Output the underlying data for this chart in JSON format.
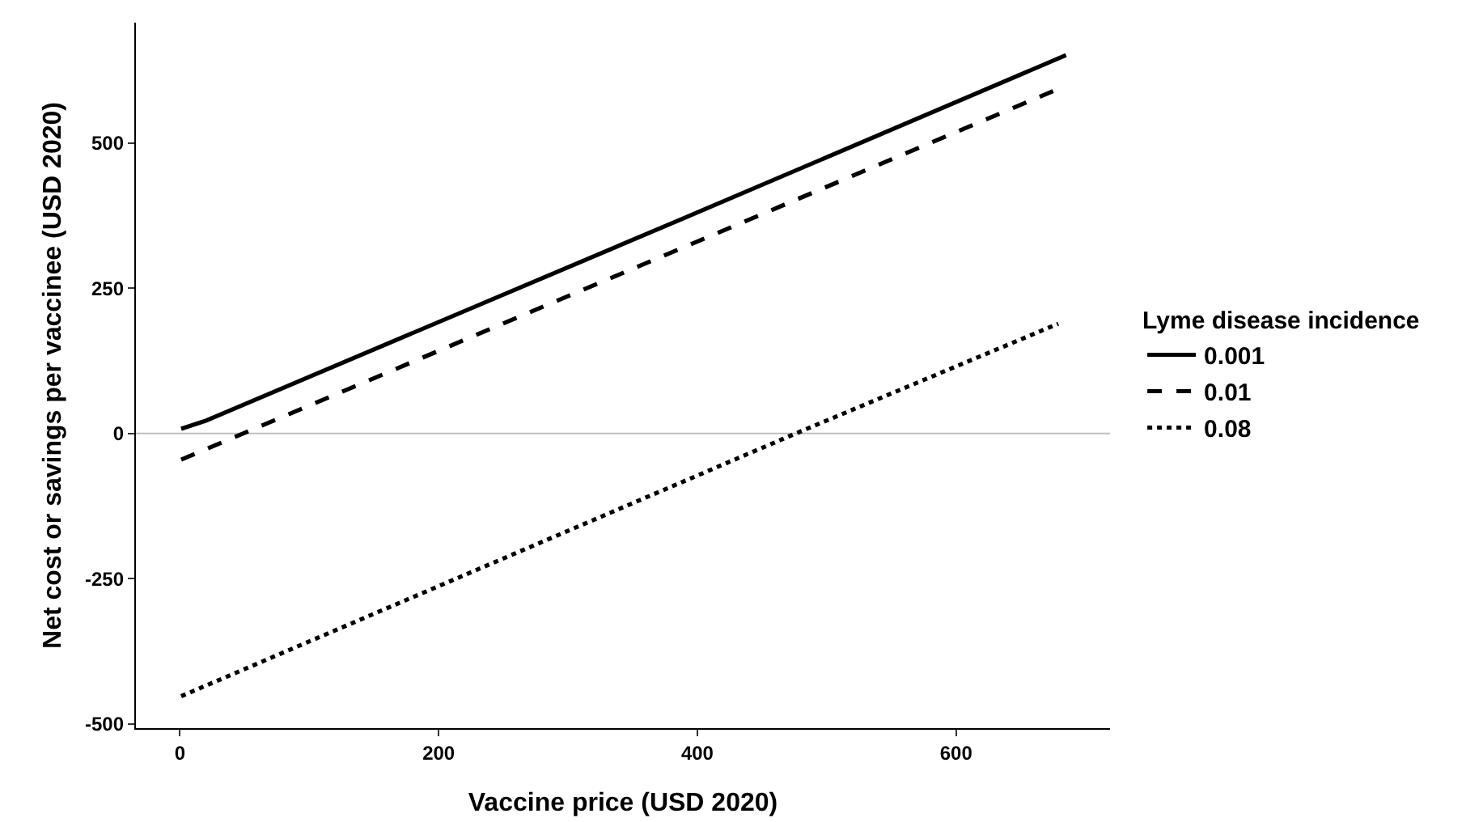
{
  "chart_data": {
    "type": "line",
    "xlabel": "Vaccine price (USD 2020)",
    "ylabel": "Net cost or savings per vaccinee (USD 2020)",
    "legend_title": "Lyme disease incidence",
    "legend": "right",
    "grid": false,
    "marker": "none",
    "xlim": [
      -34,
      719
    ],
    "ylim": [
      -507,
      707
    ],
    "xticks": [
      0,
      200,
      400,
      600
    ],
    "yticks": [
      -500,
      -250,
      0,
      250,
      500
    ],
    "series": [
      {
        "name": "0.001",
        "color": "#000000",
        "line_style": "solid",
        "x": [
          1,
          20,
          390,
          685
        ],
        "values": [
          8,
          22,
          371,
          651
        ]
      },
      {
        "name": "0.01",
        "color": "#000000",
        "line_style": "dashed",
        "x": [
          1,
          679
        ],
        "values": [
          -45,
          593
        ]
      },
      {
        "name": "0.08",
        "color": "#000000",
        "line_style": "dotted",
        "x": [
          1,
          476,
          679
        ],
        "values": [
          -452,
          0,
          189
        ]
      }
    ],
    "ref_lines": [
      {
        "axis": "y",
        "value": 0,
        "color": "#bebebe"
      }
    ]
  }
}
